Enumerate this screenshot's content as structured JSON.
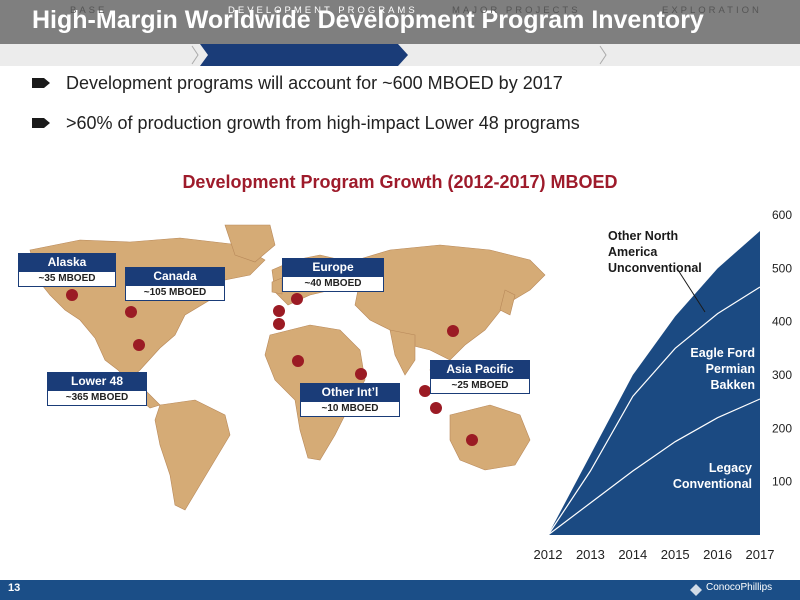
{
  "title": "High-Margin Worldwide Development Program Inventory",
  "nav": [
    "BASE",
    "DEVELOPMENT PROGRAMS",
    "MAJOR PROJECTS",
    "EXPLORATION"
  ],
  "bullets": [
    "Development programs will account for ~600 MBOED by 2017",
    ">60% of production growth from high-impact Lower 48 programs"
  ],
  "chart_title": "Development Program Growth (2012-2017) MBOED",
  "regions": [
    {
      "name": "Alaska",
      "value": "~35 MBOED"
    },
    {
      "name": "Canada",
      "value": "~105 MBOED"
    },
    {
      "name": "Europe",
      "value": "~40 MBOED"
    },
    {
      "name": "Lower 48",
      "value": "~365 MBOED"
    },
    {
      "name": "Other Int’l",
      "value": "~10 MBOED"
    },
    {
      "name": "Asia Pacific",
      "value": "~25 MBOED"
    }
  ],
  "colors": {
    "title_bar": "#7f7f7f",
    "accent_red": "#9e1b2b",
    "navy": "#1a3c78",
    "map": "#d5ab76",
    "footer": "#1b4e87"
  },
  "chart_data": {
    "type": "area",
    "title": "Development Program Growth (2012-2017) MBOED",
    "x": [
      "2012",
      "2013",
      "2014",
      "2015",
      "2016",
      "2017"
    ],
    "ylim": [
      0,
      600
    ],
    "yticks": [
      100,
      200,
      300,
      400,
      500,
      600
    ],
    "series": [
      {
        "name": "Legacy Conventional",
        "values": [
          0,
          60,
          120,
          175,
          220,
          255
        ]
      },
      {
        "name": "Eagle Ford Permian Bakken",
        "values": [
          0,
          120,
          260,
          350,
          415,
          465
        ]
      },
      {
        "name": "Other North America Unconventional",
        "values": [
          0,
          150,
          300,
          410,
          500,
          570
        ]
      }
    ],
    "series_labels": [
      [
        "Other North",
        "America",
        "Unconventional"
      ],
      [
        "Eagle Ford",
        "Permian",
        "Bakken"
      ],
      [
        "Legacy",
        "Conventional"
      ]
    ]
  },
  "page_number": "13",
  "logo_text": "ConocoPhillips"
}
